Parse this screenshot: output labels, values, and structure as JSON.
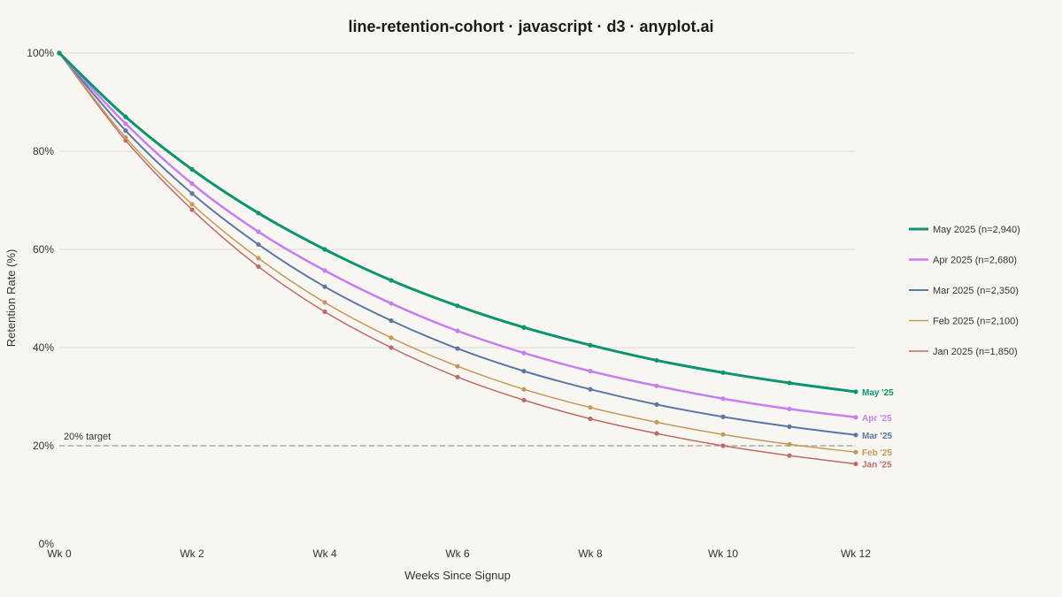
{
  "chart_data": {
    "type": "line",
    "title": "line-retention-cohort · javascript · d3 · anyplot.ai",
    "xlabel": "Weeks Since Signup",
    "ylabel": "Retention Rate (%)",
    "xlim": [
      0,
      12
    ],
    "ylim": [
      0,
      100
    ],
    "x": [
      0,
      1,
      2,
      3,
      4,
      5,
      6,
      7,
      8,
      9,
      10,
      11,
      12
    ],
    "x_tick_values": [
      0,
      2,
      4,
      6,
      8,
      10,
      12
    ],
    "x_tick_labels": [
      "Wk 0",
      "Wk 2",
      "Wk 4",
      "Wk 6",
      "Wk 8",
      "Wk 10",
      "Wk 12"
    ],
    "y_tick_values": [
      0,
      20,
      40,
      60,
      80,
      100
    ],
    "y_tick_labels": [
      "0%",
      "20%",
      "40%",
      "60%",
      "80%",
      "100%"
    ],
    "grid": "horizontal",
    "legend_position": "right",
    "reference_line": {
      "y": 20,
      "label": "20% target",
      "color": "#999999"
    },
    "series": [
      {
        "name": "Jan 2025 (n=1,850)",
        "end_label": "Jan '25",
        "color": "#BD6B6A",
        "width": 1.5,
        "values": [
          100,
          82.2,
          68.1,
          56.5,
          47.3,
          40.0,
          34.0,
          29.3,
          25.5,
          22.5,
          20.0,
          18.0,
          16.3
        ]
      },
      {
        "name": "Feb 2025 (n=2,100)",
        "end_label": "Feb '25",
        "color": "#C49A5A",
        "width": 1.5,
        "values": [
          100,
          82.8,
          69.2,
          58.2,
          49.2,
          42.0,
          36.2,
          31.5,
          27.8,
          24.8,
          22.3,
          20.3,
          18.7
        ]
      },
      {
        "name": "Mar 2025 (n=2,350)",
        "end_label": "Mar '25",
        "color": "#5A78A4",
        "width": 2,
        "values": [
          100,
          84.2,
          71.4,
          61.0,
          52.4,
          45.5,
          39.8,
          35.2,
          31.5,
          28.4,
          25.9,
          23.9,
          22.2
        ]
      },
      {
        "name": "Apr 2025 (n=2,680)",
        "end_label": "Apr '25",
        "color": "#C77DF3",
        "width": 2.5,
        "values": [
          100,
          85.6,
          73.4,
          63.6,
          55.7,
          49.0,
          43.4,
          38.9,
          35.2,
          32.2,
          29.6,
          27.5,
          25.8
        ]
      },
      {
        "name": "May 2025 (n=2,940)",
        "end_label": "May '25",
        "color": "#0B9470",
        "width": 3,
        "values": [
          100,
          87.0,
          76.3,
          67.4,
          60.0,
          53.7,
          48.5,
          44.1,
          40.5,
          37.4,
          34.9,
          32.8,
          31.0
        ]
      }
    ]
  }
}
